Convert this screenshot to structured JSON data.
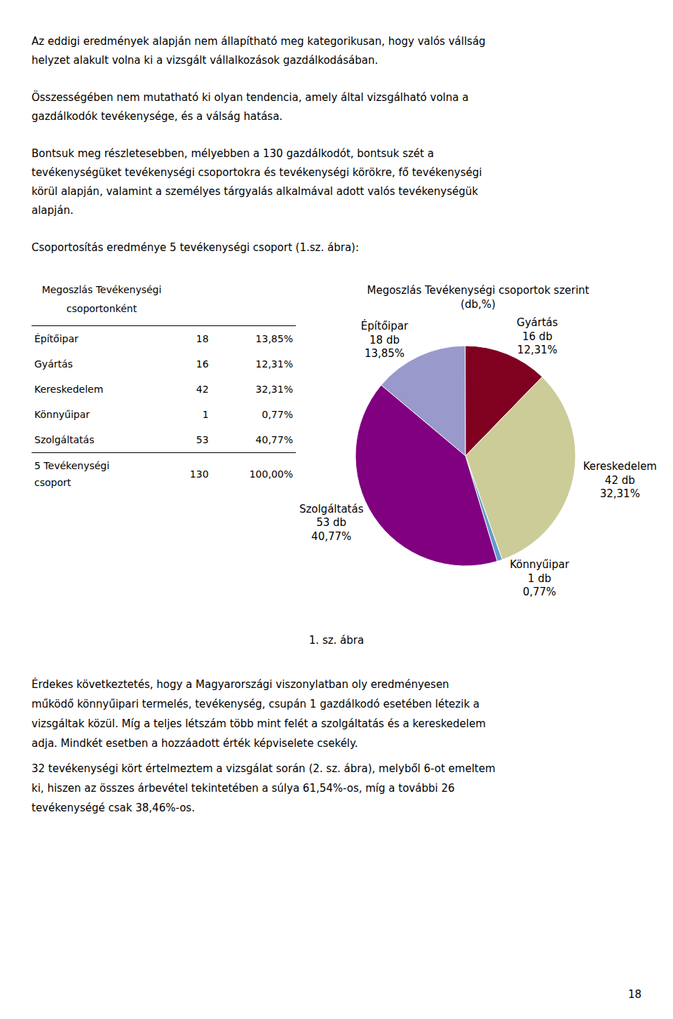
{
  "page_text": {
    "paragraphs_before": [
      [
        "Az eddigi eredmények alapján nem állapítható meg kategorikusan, hogy valós vállság",
        "helyzet alakult volna ki a vizsgált vállalkozások gazdálkodásában."
      ],
      [
        "Összességében nem mutatható ki olyan tendencia, amely által vizsgálható volna a",
        "gazdálkodók tevékenysége, és a válság hatása."
      ],
      [
        "Bontsuk meg részletesebben, mélyebben a 130 gazdálkodót, bontsuk szét a",
        "tevékenységüket tevékenységi csoportokra és tevékenységi körökre, fő tevékenységi",
        "körül alapján, valamint a személyes tárgyalás alkalmával adott valós tevékenységük",
        "alapján."
      ],
      [
        "Csoportosítás eredménye 5 tevékenységi csoport (1.sz. ábra):"
      ]
    ],
    "caption": "1. sz. ábra",
    "paragraphs_after": [
      [
        "Érdekes következtetés, hogy a Magyarországi viszonylatban oly eredményesen",
        "működő könnyűipari termelés, tevékenység, csupán 1 gazdálkodó esetében létezik a",
        "vizsgáltak közül. Míg a teljes létszám több mint felét a szolgáltatás és a kereskedelem",
        "adja. Mindkét esetben a hozzáadott érték képviselete csekély."
      ],
      [
        "32 tevékenységi kört értelmeztem a vizsgálat során (2. sz. ábra), melyből 6-ot emeltem",
        "ki, hiszen az összes árbevétel tekintetében a súlya 61,54%-os, míg a további 26",
        "tevékenységé csak 38,46%-os."
      ]
    ],
    "page_number": "18"
  },
  "chart_data": [
    {
      "type": "table",
      "title": "Megoszlás Tevékenységi\ncsoportonként",
      "categories": [
        "Építőipar",
        "Gyártás",
        "Kereskedelem",
        "Könnyűipar",
        "Szolgáltatás",
        "5 Tevékenységi\ncsoport"
      ],
      "counts": [
        18,
        16,
        42,
        1,
        53,
        130
      ],
      "values": [
        13.85,
        12.31,
        32.31,
        0.77,
        40.77,
        100.0
      ],
      "value_labels": [
        "13,85%",
        "12,31%",
        "32,31%",
        "0,77%",
        "40,77%",
        "100,00%"
      ]
    },
    {
      "type": "pie",
      "title": "Megoszlás Tevékenységi csoportok szerint",
      "subtitle": "(db,%)",
      "categories": [
        "Építőipar",
        "Gyártás",
        "Kereskedelem",
        "Könnyűipar",
        "Szolgáltatás"
      ],
      "values": [
        13.85,
        12.31,
        32.31,
        0.77,
        40.77
      ],
      "value_labels": [
        "13,85%",
        "12,31%",
        "32,31%",
        "0,77%",
        "40,77%"
      ],
      "counts": [
        18,
        16,
        42,
        1,
        53
      ],
      "count_labels": [
        "18 db",
        "16 db",
        "42 db",
        "1 db",
        "53 db"
      ],
      "colors": [
        "#9999cc",
        "#800020",
        "#cccc99",
        "#6699cc",
        "#800080"
      ],
      "data_labels": true,
      "legend": false
    }
  ]
}
